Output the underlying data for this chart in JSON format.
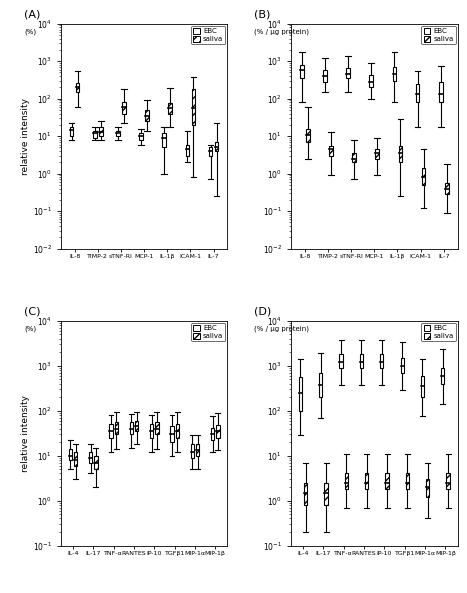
{
  "panel_A": {
    "title": "(A)",
    "ylabel": "relative intensity",
    "xlabel_unit": "(%)",
    "ylim": [
      0.01,
      10000
    ],
    "categories": [
      "IL-8",
      "TIMP-2",
      "sTNF-RI",
      "MCP-1",
      "IL-1β",
      "ICAM-1",
      "IL-7"
    ],
    "ebc": {
      "median": [
        15,
        12,
        12,
        10,
        9,
        4.5,
        4
      ],
      "q1": [
        10,
        9,
        10,
        8,
        5,
        3,
        3
      ],
      "q3": [
        18,
        14,
        14,
        12,
        12,
        6,
        5
      ],
      "whisker_low": [
        8,
        8,
        8,
        6,
        1,
        2,
        0.7
      ],
      "whisker_high": [
        22,
        18,
        18,
        16,
        18,
        14,
        6
      ]
    },
    "saliva": {
      "median": [
        200,
        13,
        60,
        35,
        55,
        55,
        5
      ],
      "q1": [
        150,
        10,
        40,
        25,
        40,
        20,
        4
      ],
      "q3": [
        260,
        18,
        80,
        50,
        75,
        180,
        7
      ],
      "whisker_low": [
        60,
        8,
        22,
        14,
        18,
        0.8,
        0.25
      ],
      "whisker_high": [
        550,
        26,
        180,
        90,
        190,
        380,
        22
      ]
    }
  },
  "panel_B": {
    "title": "(B)",
    "ylabel": "",
    "xlabel_unit": "(% / µg protein)",
    "ylim": [
      0.01,
      10000
    ],
    "categories": [
      "IL-8",
      "TIMP-2",
      "sTNF-RI",
      "MCP-1",
      "IL-1β",
      "ICAM-1",
      "IL-7"
    ],
    "ebc": {
      "median": [
        600,
        400,
        450,
        280,
        450,
        130,
        130
      ],
      "q1": [
        350,
        280,
        350,
        200,
        300,
        80,
        80
      ],
      "q3": [
        800,
        600,
        650,
        420,
        680,
        250,
        280
      ],
      "whisker_low": [
        80,
        150,
        150,
        100,
        80,
        18,
        18
      ],
      "whisker_high": [
        1800,
        1200,
        1400,
        900,
        1800,
        550,
        750
      ]
    },
    "saliva": {
      "median": [
        11,
        4.5,
        2.5,
        3.5,
        3.5,
        0.8,
        0.4
      ],
      "q1": [
        7,
        3,
        2,
        2.5,
        2,
        0.5,
        0.28
      ],
      "q3": [
        16,
        5.5,
        3.5,
        4.5,
        5.5,
        1.4,
        0.55
      ],
      "whisker_low": [
        2.5,
        0.9,
        0.7,
        0.9,
        0.25,
        0.12,
        0.09
      ],
      "whisker_high": [
        60,
        13,
        8,
        9,
        28,
        4.5,
        1.8
      ]
    }
  },
  "panel_C": {
    "title": "(C)",
    "ylabel": "relative intensity",
    "xlabel_unit": "(%)",
    "ylim": [
      0.1,
      10000
    ],
    "categories": [
      "IL-4",
      "IL-17",
      "TNF-α",
      "RANTES",
      "IP-10",
      "TGFβ1",
      "MIP-1α",
      "MIP-1β"
    ],
    "ebc": {
      "median": [
        10,
        9,
        35,
        40,
        35,
        30,
        12,
        30
      ],
      "q1": [
        8,
        7,
        25,
        30,
        25,
        20,
        9,
        22
      ],
      "q3": [
        14,
        12,
        50,
        55,
        50,
        45,
        18,
        42
      ],
      "whisker_low": [
        5,
        4,
        12,
        15,
        12,
        10,
        5,
        12
      ],
      "whisker_high": [
        22,
        18,
        80,
        85,
        80,
        80,
        28,
        75
      ]
    },
    "saliva": {
      "median": [
        8,
        7,
        40,
        45,
        40,
        35,
        13,
        35
      ],
      "q1": [
        6,
        5,
        30,
        35,
        30,
        25,
        10,
        25
      ],
      "q3": [
        12,
        10,
        55,
        60,
        55,
        50,
        18,
        48
      ],
      "whisker_low": [
        3,
        2,
        14,
        18,
        14,
        12,
        5,
        13
      ],
      "whisker_high": [
        18,
        15,
        95,
        95,
        95,
        95,
        28,
        88
      ]
    }
  },
  "panel_D": {
    "title": "(D)",
    "ylabel": "",
    "xlabel_unit": "(% / µg protein)",
    "ylim": [
      0.1,
      10000
    ],
    "categories": [
      "IL-4",
      "IL-17",
      "TNF-α",
      "RANTES",
      "IP-10",
      "TGFβ1",
      "MIP-1α",
      "MIP-1β"
    ],
    "ebc": {
      "median": [
        250,
        380,
        1200,
        1200,
        1200,
        1000,
        350,
        580
      ],
      "q1": [
        100,
        200,
        900,
        900,
        900,
        700,
        200,
        400
      ],
      "q3": [
        550,
        680,
        1800,
        1800,
        1800,
        1500,
        580,
        880
      ],
      "whisker_low": [
        28,
        70,
        380,
        380,
        380,
        280,
        75,
        140
      ],
      "whisker_high": [
        1400,
        1900,
        3800,
        3800,
        3800,
        3400,
        1400,
        2400
      ]
    },
    "saliva": {
      "median": [
        1.5,
        1.5,
        2.5,
        2.5,
        2.5,
        2.5,
        2,
        2.5
      ],
      "q1": [
        0.8,
        0.8,
        1.8,
        1.8,
        1.8,
        1.8,
        1.2,
        1.8
      ],
      "q3": [
        2.5,
        2.5,
        4,
        4,
        4,
        4,
        3,
        4
      ],
      "whisker_low": [
        0.2,
        0.2,
        0.7,
        0.7,
        0.7,
        0.7,
        0.4,
        0.7
      ],
      "whisker_high": [
        7,
        7,
        11,
        11,
        11,
        11,
        7,
        11
      ]
    }
  }
}
